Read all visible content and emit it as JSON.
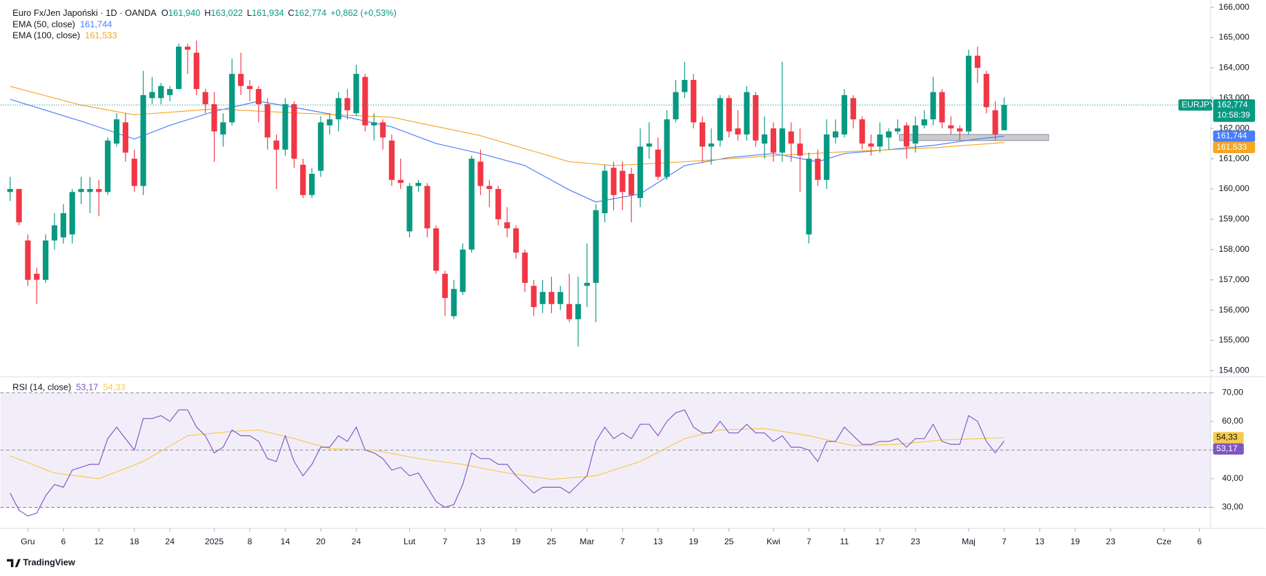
{
  "chart_data": {
    "type": "candlestick",
    "header": {
      "symbol": "Euro Fx/Jen Japoński · 1D · OANDA",
      "ohlc": [
        {
          "key": "O",
          "value": "161,940"
        },
        {
          "key": "H",
          "value": "163,022"
        },
        {
          "key": "L",
          "value": "161,934"
        },
        {
          "key": "C",
          "value": "162,774"
        }
      ],
      "change": "+0,862 (+0,53%)"
    },
    "symbol_tag": "EURJPY",
    "last_label": "162,774",
    "countdown": "10:58:39",
    "up_color": "#089981",
    "down_color": "#f23645",
    "candles": [
      [
        159.9,
        160.4,
        159.6,
        160.0
      ],
      [
        160.0,
        160.0,
        158.8,
        158.9
      ],
      [
        158.3,
        158.5,
        156.8,
        157.0
      ],
      [
        157.2,
        157.4,
        156.2,
        157.0
      ],
      [
        157.0,
        158.5,
        156.9,
        158.3
      ],
      [
        158.3,
        159.2,
        158.0,
        158.8
      ],
      [
        158.4,
        159.5,
        158.2,
        159.2
      ],
      [
        158.5,
        160.0,
        158.2,
        159.9
      ],
      [
        159.9,
        160.4,
        159.5,
        160.0
      ],
      [
        159.9,
        160.4,
        159.2,
        160.0
      ],
      [
        160.0,
        160.3,
        159.1,
        159.9
      ],
      [
        159.9,
        161.7,
        159.8,
        161.6
      ],
      [
        161.5,
        162.5,
        161.4,
        162.3
      ],
      [
        162.2,
        162.5,
        160.9,
        161.2
      ],
      [
        161.0,
        161.3,
        159.9,
        160.1
      ],
      [
        160.1,
        163.9,
        159.8,
        163.1
      ],
      [
        163.0,
        163.7,
        162.8,
        163.2
      ],
      [
        163.0,
        163.5,
        162.8,
        163.4
      ],
      [
        163.1,
        163.4,
        162.9,
        163.3
      ],
      [
        163.3,
        164.8,
        163.3,
        164.7
      ],
      [
        164.7,
        164.8,
        163.8,
        164.6
      ],
      [
        164.5,
        164.9,
        163.1,
        163.3
      ],
      [
        163.2,
        163.3,
        162.5,
        162.8
      ],
      [
        162.8,
        163.2,
        160.9,
        161.9
      ],
      [
        161.8,
        162.5,
        161.4,
        162.2
      ],
      [
        162.2,
        164.3,
        162.1,
        163.8
      ],
      [
        163.8,
        164.5,
        163.1,
        163.4
      ],
      [
        163.4,
        163.6,
        162.9,
        163.3
      ],
      [
        163.3,
        163.4,
        162.2,
        162.8
      ],
      [
        162.8,
        163.0,
        161.3,
        161.7
      ],
      [
        161.6,
        161.8,
        160.0,
        161.3
      ],
      [
        161.3,
        163.0,
        161.1,
        162.8
      ],
      [
        162.8,
        162.9,
        160.7,
        161.0
      ],
      [
        160.8,
        161.0,
        159.7,
        159.8
      ],
      [
        159.8,
        160.7,
        159.7,
        160.5
      ],
      [
        160.6,
        162.4,
        160.4,
        162.2
      ],
      [
        162.1,
        162.5,
        161.8,
        162.3
      ],
      [
        162.3,
        163.2,
        161.9,
        163.0
      ],
      [
        163.0,
        163.3,
        162.3,
        162.6
      ],
      [
        162.5,
        164.1,
        162.4,
        163.8
      ],
      [
        163.7,
        163.8,
        161.9,
        162.1
      ],
      [
        162.1,
        162.5,
        161.6,
        162.2
      ],
      [
        162.2,
        162.3,
        161.3,
        161.7
      ],
      [
        161.6,
        161.8,
        160.1,
        160.3
      ],
      [
        160.3,
        161.0,
        160.0,
        160.2
      ],
      [
        158.6,
        160.2,
        158.4,
        160.1
      ],
      [
        160.1,
        160.3,
        159.9,
        160.2
      ],
      [
        160.1,
        160.2,
        158.4,
        158.7
      ],
      [
        158.7,
        158.8,
        157.2,
        157.3
      ],
      [
        157.2,
        157.3,
        155.8,
        156.4
      ],
      [
        155.8,
        157.0,
        155.7,
        156.7
      ],
      [
        156.6,
        158.2,
        156.5,
        158.0
      ],
      [
        158.0,
        161.1,
        157.9,
        161.0
      ],
      [
        160.9,
        161.3,
        159.8,
        160.1
      ],
      [
        160.1,
        160.3,
        159.4,
        160.0
      ],
      [
        160.0,
        160.1,
        158.8,
        159.0
      ],
      [
        158.9,
        159.4,
        158.4,
        158.7
      ],
      [
        158.7,
        158.8,
        157.7,
        157.9
      ],
      [
        157.9,
        158.0,
        156.6,
        156.9
      ],
      [
        156.8,
        157.0,
        155.8,
        156.1
      ],
      [
        156.2,
        157.0,
        155.9,
        156.6
      ],
      [
        156.6,
        157.1,
        155.9,
        156.2
      ],
      [
        156.2,
        156.8,
        156.0,
        156.6
      ],
      [
        156.2,
        157.2,
        155.6,
        155.7
      ],
      [
        155.7,
        157.1,
        154.8,
        156.2
      ],
      [
        156.8,
        158.2,
        156.1,
        156.9
      ],
      [
        156.9,
        159.5,
        155.6,
        159.3
      ],
      [
        159.2,
        160.8,
        158.9,
        160.6
      ],
      [
        160.7,
        160.9,
        159.3,
        159.8
      ],
      [
        160.6,
        160.9,
        159.3,
        159.9
      ],
      [
        160.5,
        160.7,
        158.9,
        159.8
      ],
      [
        159.7,
        162.0,
        159.4,
        161.4
      ],
      [
        161.4,
        162.2,
        161.0,
        161.5
      ],
      [
        161.3,
        161.7,
        160.3,
        160.4
      ],
      [
        160.4,
        162.6,
        160.3,
        162.3
      ],
      [
        162.3,
        163.6,
        162.2,
        163.2
      ],
      [
        163.2,
        164.2,
        163.0,
        163.6
      ],
      [
        163.6,
        163.8,
        162.0,
        162.2
      ],
      [
        162.2,
        162.4,
        160.9,
        161.4
      ],
      [
        161.4,
        162.0,
        160.8,
        161.5
      ],
      [
        161.6,
        163.1,
        161.4,
        163.0
      ],
      [
        163.0,
        163.1,
        161.7,
        161.9
      ],
      [
        162.0,
        162.6,
        161.6,
        161.8
      ],
      [
        161.8,
        163.4,
        161.6,
        163.2
      ],
      [
        163.1,
        163.2,
        161.4,
        161.6
      ],
      [
        161.5,
        162.4,
        161.0,
        161.8
      ],
      [
        162.0,
        162.2,
        160.9,
        161.2
      ],
      [
        161.2,
        164.2,
        160.9,
        162.0
      ],
      [
        161.9,
        162.2,
        160.9,
        161.5
      ],
      [
        161.5,
        162.0,
        159.9,
        161.1
      ],
      [
        158.5,
        161.2,
        158.2,
        161.0
      ],
      [
        161.0,
        161.3,
        160.1,
        160.3
      ],
      [
        160.3,
        162.3,
        160.0,
        161.8
      ],
      [
        161.7,
        162.3,
        161.5,
        161.9
      ],
      [
        161.8,
        163.3,
        161.7,
        163.1
      ],
      [
        163.0,
        163.1,
        162.0,
        162.3
      ],
      [
        162.3,
        162.4,
        161.3,
        161.5
      ],
      [
        161.5,
        161.8,
        161.1,
        161.4
      ],
      [
        161.4,
        162.2,
        161.2,
        161.8
      ],
      [
        161.7,
        162.0,
        161.3,
        161.9
      ],
      [
        161.9,
        162.3,
        161.8,
        162.0
      ],
      [
        162.1,
        162.2,
        161.0,
        161.4
      ],
      [
        161.5,
        162.4,
        161.2,
        162.1
      ],
      [
        162.1,
        162.6,
        162.0,
        162.3
      ],
      [
        162.3,
        163.7,
        162.1,
        163.2
      ],
      [
        163.2,
        163.3,
        162.0,
        162.2
      ],
      [
        162.1,
        162.4,
        161.8,
        162.0
      ],
      [
        162.0,
        162.1,
        161.6,
        161.9
      ],
      [
        161.9,
        164.6,
        161.8,
        164.4
      ],
      [
        164.4,
        164.7,
        163.5,
        164.0
      ],
      [
        163.8,
        163.9,
        162.5,
        162.7
      ],
      [
        162.6,
        162.9,
        161.6,
        161.8
      ],
      [
        161.94,
        163.022,
        161.934,
        162.774
      ]
    ],
    "ema": [
      {
        "name": "EMA (50, close)",
        "value_label": "161,744",
        "color": "#4a7dfb",
        "x": [
          0,
          8,
          14,
          18,
          23,
          28,
          33,
          38,
          43,
          48,
          53,
          58,
          63,
          66,
          71,
          76,
          81,
          86,
          91,
          94,
          99,
          104,
          109,
          112
        ],
        "values": [
          162.96,
          162.24,
          161.65,
          162.1,
          162.56,
          162.9,
          162.64,
          162.37,
          162.05,
          161.5,
          161.17,
          160.77,
          159.97,
          159.57,
          159.84,
          160.77,
          161.04,
          161.17,
          160.9,
          161.17,
          161.3,
          161.44,
          161.65,
          161.744
        ]
      },
      {
        "name": "EMA (100, close)",
        "value_label": "161,533",
        "color": "#f5a623",
        "x": [
          0,
          8,
          14,
          23,
          33,
          43,
          53,
          63,
          68,
          76,
          86,
          94,
          104,
          112
        ],
        "values": [
          163.39,
          162.77,
          162.45,
          162.64,
          162.5,
          162.37,
          161.76,
          160.9,
          160.77,
          160.9,
          161.1,
          161.23,
          161.36,
          161.533
        ]
      }
    ],
    "zone": {
      "from": 100.2,
      "to": 117,
      "low": 161.6,
      "high": 161.8
    },
    "xlim": [
      -1.09,
      135.27
    ],
    "ylim": [
      153.8,
      166.24
    ],
    "yticks": [
      {
        "value": 154,
        "label": "154,000"
      },
      {
        "value": 155,
        "label": "155,000"
      },
      {
        "value": 156,
        "label": "156,000"
      },
      {
        "value": 157,
        "label": "157,000"
      },
      {
        "value": 158,
        "label": "158,000"
      },
      {
        "value": 159,
        "label": "159,000"
      },
      {
        "value": 160,
        "label": "160,000"
      },
      {
        "value": 161,
        "label": "161,000"
      },
      {
        "value": 162,
        "label": "162,000"
      },
      {
        "value": 163,
        "label": "163,000"
      },
      {
        "value": 164,
        "label": "164,000"
      },
      {
        "value": 165,
        "label": "165,000"
      },
      {
        "value": 166,
        "label": "166,000"
      }
    ],
    "xticks": [
      {
        "value": 2,
        "label": "Gru"
      },
      {
        "value": 6,
        "label": "6"
      },
      {
        "value": 10,
        "label": "12"
      },
      {
        "value": 14,
        "label": "18"
      },
      {
        "value": 18,
        "label": "24"
      },
      {
        "value": 23,
        "label": "2025"
      },
      {
        "value": 27,
        "label": "8"
      },
      {
        "value": 31,
        "label": "14"
      },
      {
        "value": 35,
        "label": "20"
      },
      {
        "value": 39,
        "label": "24"
      },
      {
        "value": 45,
        "label": "Lut"
      },
      {
        "value": 49,
        "label": "7"
      },
      {
        "value": 53,
        "label": "13"
      },
      {
        "value": 57,
        "label": "19"
      },
      {
        "value": 61,
        "label": "25"
      },
      {
        "value": 65,
        "label": "Mar"
      },
      {
        "value": 69,
        "label": "7"
      },
      {
        "value": 73,
        "label": "13"
      },
      {
        "value": 77,
        "label": "19"
      },
      {
        "value": 81,
        "label": "25"
      },
      {
        "value": 86,
        "label": "Kwi"
      },
      {
        "value": 90,
        "label": "7"
      },
      {
        "value": 94,
        "label": "11"
      },
      {
        "value": 98,
        "label": "17"
      },
      {
        "value": 102,
        "label": "23"
      },
      {
        "value": 108,
        "label": "Maj"
      },
      {
        "value": 112,
        "label": "7"
      },
      {
        "value": 116,
        "label": "13"
      },
      {
        "value": 120,
        "label": "19"
      },
      {
        "value": 124,
        "label": "23"
      },
      {
        "value": 130,
        "label": "Cze"
      },
      {
        "value": 134,
        "label": "6"
      }
    ],
    "rsi": {
      "name": "RSI (14, close)",
      "value_label": "53,17",
      "color": "#7e57c2",
      "values": [
        35,
        29,
        27,
        28,
        34,
        38,
        37,
        43,
        44,
        45,
        45,
        54,
        58,
        54,
        50,
        61,
        61,
        62,
        60,
        64,
        64,
        58,
        55,
        49,
        51,
        57,
        55,
        55,
        53,
        47,
        46,
        55,
        46,
        41,
        45,
        51,
        51,
        55,
        53,
        58,
        50,
        49,
        47,
        43,
        44,
        41,
        42,
        37,
        32,
        30,
        31,
        38,
        49,
        47,
        47,
        45,
        45,
        41,
        38,
        35,
        37,
        37,
        37,
        35,
        38,
        41,
        53,
        58,
        54,
        56,
        54,
        59,
        59,
        55,
        60,
        63,
        64,
        58,
        56,
        56,
        60,
        56,
        56,
        59,
        56,
        56,
        53,
        55,
        51,
        51,
        50,
        46,
        53,
        53,
        58,
        55,
        52,
        52,
        53,
        53,
        54,
        51,
        54,
        54,
        59,
        53,
        52,
        52,
        62,
        60,
        53,
        49,
        53.17
      ],
      "ma": {
        "value_label": "54,33",
        "color": "#f7c948",
        "x": [
          0,
          5,
          10,
          15,
          20,
          25,
          28,
          32,
          36,
          41,
          46,
          51,
          56,
          61,
          66,
          71,
          76,
          80,
          85,
          90,
          95,
          100,
          105,
          112
        ],
        "values": [
          48,
          42,
          40,
          46,
          55,
          56.5,
          57,
          54,
          50.5,
          50,
          47,
          45,
          42,
          39.8,
          41,
          46,
          54,
          57,
          57.5,
          55,
          51.5,
          52,
          53.5,
          54.33
        ]
      },
      "ylim": [
        23.5,
        75.3
      ],
      "yticks": [
        {
          "value": 30,
          "label": "30,00"
        },
        {
          "value": 40,
          "label": "40,00"
        },
        {
          "value": 50,
          "label": "50,00"
        },
        {
          "value": 60,
          "label": "60,00"
        },
        {
          "value": 70,
          "label": "70,00"
        }
      ],
      "dashed_levels": [
        30,
        50,
        70
      ]
    },
    "brand": "TradingView"
  }
}
